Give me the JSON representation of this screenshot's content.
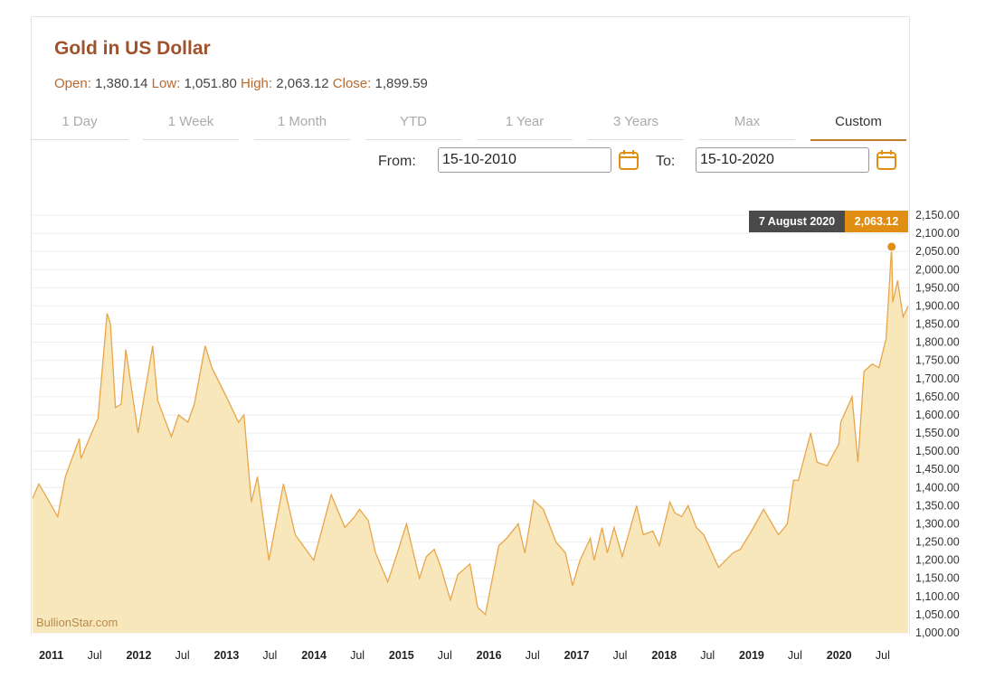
{
  "title": "Gold in US Dollar",
  "ohlc": {
    "open_label": "Open:",
    "open": "1,380.14",
    "low_label": "Low:",
    "low": "1,051.80",
    "high_label": "High:",
    "high": "2,063.12",
    "close_label": "Close:",
    "close": "1,899.59"
  },
  "tabs": [
    {
      "label": "1 Day",
      "active": false
    },
    {
      "label": "1 Week",
      "active": false
    },
    {
      "label": "1 Month",
      "active": false
    },
    {
      "label": "YTD",
      "active": false
    },
    {
      "label": "1 Year",
      "active": false
    },
    {
      "label": "3 Years",
      "active": false
    },
    {
      "label": "Max",
      "active": false
    },
    {
      "label": "Custom",
      "active": true
    }
  ],
  "range": {
    "from_label": "From:",
    "from_value": "15-10-2010",
    "to_label": "To:",
    "to_value": "15-10-2020"
  },
  "tooltip": {
    "date": "7 August 2020",
    "value": "2,063.12"
  },
  "watermark": "BullionStar.com",
  "colors": {
    "accent": "#e08f14",
    "title": "#a0522d",
    "line": "#e8a64a",
    "fill": "#f7e7bb",
    "tooltip_bg": "#4a4a4a"
  },
  "icons": {
    "calendar": "calendar-icon"
  },
  "chart_data": {
    "type": "area",
    "title": "Gold in US Dollar",
    "xlabel": "",
    "ylabel": "",
    "ylim": [
      1000,
      2150
    ],
    "xlim": [
      "2010-10-15",
      "2020-10-15"
    ],
    "y_ticks": [
      "1,000.00",
      "1,050.00",
      "1,100.00",
      "1,150.00",
      "1,200.00",
      "1,250.00",
      "1,300.00",
      "1,350.00",
      "1,400.00",
      "1,450.00",
      "1,500.00",
      "1,550.00",
      "1,600.00",
      "1,650.00",
      "1,700.00",
      "1,750.00",
      "1,800.00",
      "1,850.00",
      "1,900.00",
      "1,950.00",
      "2,000.00",
      "2,050.00",
      "2,100.00",
      "2,150.00"
    ],
    "x_ticks": [
      {
        "label": "2011",
        "date": "2011-01-01",
        "major": true
      },
      {
        "label": "Jul",
        "date": "2011-07-01",
        "major": false
      },
      {
        "label": "2012",
        "date": "2012-01-01",
        "major": true
      },
      {
        "label": "Jul",
        "date": "2012-07-01",
        "major": false
      },
      {
        "label": "2013",
        "date": "2013-01-01",
        "major": true
      },
      {
        "label": "Jul",
        "date": "2013-07-01",
        "major": false
      },
      {
        "label": "2014",
        "date": "2014-01-01",
        "major": true
      },
      {
        "label": "Jul",
        "date": "2014-07-01",
        "major": false
      },
      {
        "label": "2015",
        "date": "2015-01-01",
        "major": true
      },
      {
        "label": "Jul",
        "date": "2015-07-01",
        "major": false
      },
      {
        "label": "2016",
        "date": "2016-01-01",
        "major": true
      },
      {
        "label": "Jul",
        "date": "2016-07-01",
        "major": false
      },
      {
        "label": "2017",
        "date": "2017-01-01",
        "major": true
      },
      {
        "label": "Jul",
        "date": "2017-07-01",
        "major": false
      },
      {
        "label": "2018",
        "date": "2018-01-01",
        "major": true
      },
      {
        "label": "Jul",
        "date": "2018-07-01",
        "major": false
      },
      {
        "label": "2019",
        "date": "2019-01-01",
        "major": true
      },
      {
        "label": "Jul",
        "date": "2019-07-01",
        "major": false
      },
      {
        "label": "2020",
        "date": "2020-01-01",
        "major": true
      },
      {
        "label": "Jul",
        "date": "2020-07-01",
        "major": false
      }
    ],
    "grid": true,
    "highlight": {
      "date": "2020-08-07",
      "value": 2063.12
    },
    "series": [
      {
        "x": [
          "2010-10-15",
          "2010-11-10",
          "2010-12-07",
          "2011-01-28",
          "2011-03-01",
          "2011-04-28",
          "2011-05-05",
          "2011-06-15",
          "2011-07-15",
          "2011-08-22",
          "2011-09-05",
          "2011-09-26",
          "2011-10-20",
          "2011-11-08",
          "2011-12-29",
          "2012-02-28",
          "2012-03-20",
          "2012-05-16",
          "2012-06-15",
          "2012-07-24",
          "2012-08-20",
          "2012-10-04",
          "2012-11-01",
          "2012-12-28",
          "2013-02-20",
          "2013-03-15",
          "2013-04-15",
          "2013-05-10",
          "2013-06-27",
          "2013-08-27",
          "2013-10-15",
          "2013-12-31",
          "2014-03-14",
          "2014-05-10",
          "2014-06-20",
          "2014-07-10",
          "2014-08-15",
          "2014-09-15",
          "2014-11-05",
          "2014-12-15",
          "2015-01-22",
          "2015-03-17",
          "2015-04-15",
          "2015-05-18",
          "2015-06-15",
          "2015-07-24",
          "2015-08-24",
          "2015-10-14",
          "2015-11-15",
          "2015-12-17",
          "2016-02-11",
          "2016-03-15",
          "2016-05-02",
          "2016-05-30",
          "2016-07-06",
          "2016-08-15",
          "2016-10-07",
          "2016-11-15",
          "2016-12-15",
          "2017-01-15",
          "2017-02-27",
          "2017-03-15",
          "2017-04-17",
          "2017-05-09",
          "2017-06-06",
          "2017-07-10",
          "2017-09-08",
          "2017-10-06",
          "2017-11-15",
          "2017-12-12",
          "2018-01-25",
          "2018-02-15",
          "2018-03-15",
          "2018-04-11",
          "2018-05-15",
          "2018-06-15",
          "2018-08-16",
          "2018-10-15",
          "2018-11-15",
          "2018-12-31",
          "2019-02-20",
          "2019-04-23",
          "2019-05-30",
          "2019-06-25",
          "2019-07-15",
          "2019-09-04",
          "2019-10-01",
          "2019-11-12",
          "2019-12-31",
          "2020-01-08",
          "2020-02-24",
          "2020-03-19",
          "2020-04-14",
          "2020-05-18",
          "2020-06-15",
          "2020-07-15",
          "2020-08-07",
          "2020-08-12",
          "2020-09-01",
          "2020-09-24",
          "2020-10-15"
        ],
        "y": [
          1370,
          1410,
          1380,
          1320,
          1430,
          1535,
          1480,
          1545,
          1590,
          1880,
          1850,
          1620,
          1630,
          1780,
          1550,
          1790,
          1640,
          1540,
          1600,
          1580,
          1630,
          1790,
          1730,
          1655,
          1580,
          1600,
          1360,
          1430,
          1200,
          1410,
          1270,
          1200,
          1380,
          1290,
          1320,
          1340,
          1310,
          1220,
          1140,
          1220,
          1300,
          1150,
          1210,
          1230,
          1180,
          1090,
          1160,
          1190,
          1070,
          1050,
          1240,
          1260,
          1300,
          1220,
          1365,
          1340,
          1250,
          1220,
          1130,
          1200,
          1260,
          1200,
          1290,
          1220,
          1290,
          1210,
          1350,
          1270,
          1280,
          1240,
          1360,
          1330,
          1320,
          1350,
          1290,
          1270,
          1180,
          1220,
          1230,
          1280,
          1340,
          1270,
          1300,
          1420,
          1420,
          1550,
          1470,
          1460,
          1520,
          1580,
          1650,
          1470,
          1720,
          1740,
          1730,
          1810,
          2063.12,
          1910,
          1970,
          1870,
          1900
        ]
      }
    ]
  }
}
